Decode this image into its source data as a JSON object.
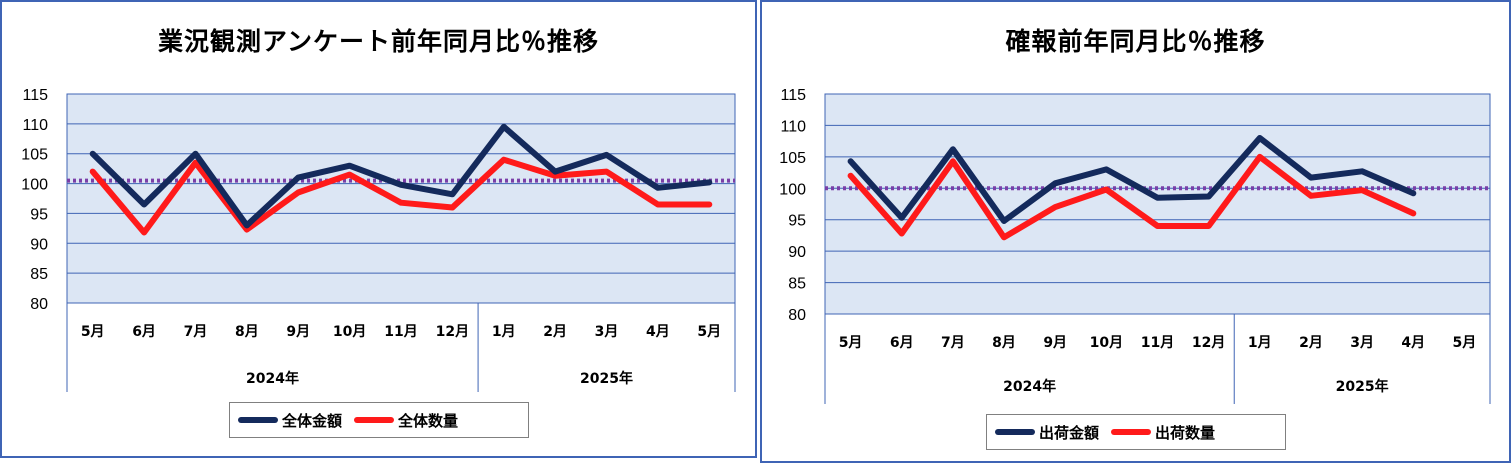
{
  "chart_data": [
    {
      "type": "line",
      "title": "業況観測アンケート前年同月比％推移",
      "ylim": [
        80,
        115
      ],
      "yticks": [
        80,
        85,
        90,
        95,
        100,
        105,
        110,
        115
      ],
      "categories": [
        "5月",
        "6月",
        "7月",
        "8月",
        "9月",
        "10月",
        "11月",
        "12月",
        "1月",
        "2月",
        "3月",
        "4月",
        "5月"
      ],
      "groups": [
        {
          "label": "2024年",
          "count": 8
        },
        {
          "label": "2025年",
          "count": 5
        }
      ],
      "reference_line": 100.5,
      "grid": true,
      "legend_position": "bottom",
      "series": [
        {
          "name": "全体金額",
          "color": "#142a5c",
          "values": [
            105,
            96.5,
            105,
            93,
            101,
            103,
            99.8,
            98.2,
            109.5,
            102,
            104.8,
            99.3,
            100.2
          ]
        },
        {
          "name": "全体数量",
          "color": "#ff1a1a",
          "values": [
            102,
            91.8,
            103.5,
            92.3,
            98.5,
            101.5,
            96.8,
            96,
            104,
            101.3,
            102,
            96.5,
            96.5
          ]
        }
      ]
    },
    {
      "type": "line",
      "title": "確報前年同月比％推移",
      "ylim": [
        80,
        115
      ],
      "yticks": [
        80,
        85,
        90,
        95,
        100,
        105,
        110,
        115
      ],
      "categories": [
        "5月",
        "6月",
        "7月",
        "8月",
        "9月",
        "10月",
        "11月",
        "12月",
        "1月",
        "2月",
        "3月",
        "4月",
        "5月"
      ],
      "groups": [
        {
          "label": "2024年",
          "count": 8
        },
        {
          "label": "2025年",
          "count": 5
        }
      ],
      "reference_line": 100,
      "grid": true,
      "legend_position": "bottom",
      "series": [
        {
          "name": "出荷金額",
          "color": "#142a5c",
          "values": [
            104.3,
            95.3,
            106.2,
            94.8,
            100.8,
            103,
            98.5,
            98.7,
            108,
            101.7,
            102.7,
            99.2,
            null
          ]
        },
        {
          "name": "出荷数量",
          "color": "#ff1a1a",
          "values": [
            102,
            92.8,
            104.3,
            92.2,
            97,
            99.8,
            94,
            94,
            105,
            98.8,
            99.7,
            96,
            null
          ]
        }
      ]
    }
  ]
}
